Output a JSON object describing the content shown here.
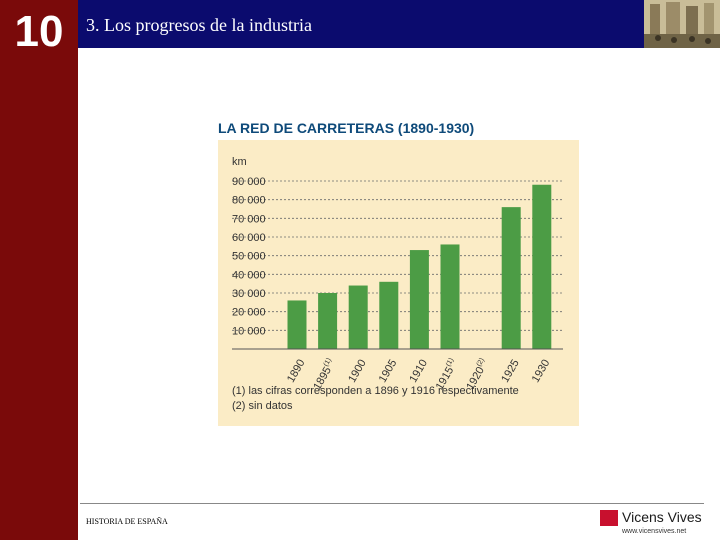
{
  "slide": {
    "chapter_number": "10",
    "section_title": "3. Los progresos de la industria",
    "footer_text": "HISTORIA DE ESPAÑA",
    "logo_name": "Vicens Vives",
    "logo_url": "www.vicensvives.net"
  },
  "colors": {
    "side_band": "#7a0a0a",
    "top_bar": "#0b0b6e",
    "panel": "#fbecc6",
    "bar": "#4c9c45",
    "title": "#0e4a7a"
  },
  "chart_data": {
    "type": "bar",
    "title": "LA RED DE CARRETERAS (1890-1930)",
    "ylabel": "km",
    "ylim": [
      0,
      90000
    ],
    "yticks": [
      {
        "value": 10000,
        "label": "10 000"
      },
      {
        "value": 20000,
        "label": "20 000"
      },
      {
        "value": 30000,
        "label": "30 000"
      },
      {
        "value": 40000,
        "label": "40 000"
      },
      {
        "value": 50000,
        "label": "50 000"
      },
      {
        "value": 60000,
        "label": "60 000"
      },
      {
        "value": 70000,
        "label": "70 000"
      },
      {
        "value": 80000,
        "label": "80 000"
      },
      {
        "value": 90000,
        "label": "90 000"
      }
    ],
    "grid": true,
    "categories": [
      {
        "label": "1890",
        "sup": ""
      },
      {
        "label": "1895",
        "sup": "(1)"
      },
      {
        "label": "1900",
        "sup": ""
      },
      {
        "label": "1905",
        "sup": ""
      },
      {
        "label": "1910",
        "sup": ""
      },
      {
        "label": "1915",
        "sup": "(1)"
      },
      {
        "label": "1920",
        "sup": "(2)"
      },
      {
        "label": "1925",
        "sup": ""
      },
      {
        "label": "1930",
        "sup": ""
      }
    ],
    "values": [
      26000,
      30000,
      34000,
      36000,
      53000,
      56000,
      null,
      76000,
      88000
    ],
    "notes": [
      "(1) las cifras corresponden a 1896 y 1916 respectivamente",
      "(2) sin datos"
    ]
  }
}
